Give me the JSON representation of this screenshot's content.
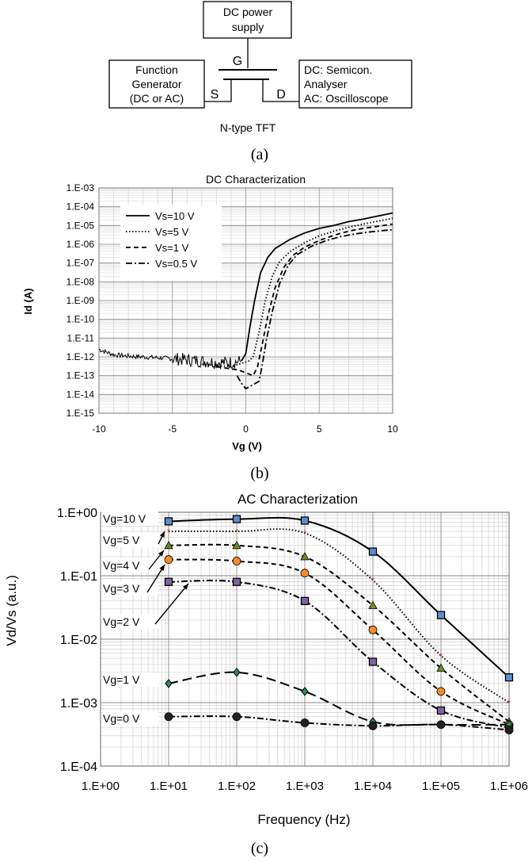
{
  "panel_a": {
    "caption": "(a)",
    "power_supply": [
      "DC power",
      "supply"
    ],
    "function_generator": [
      "Function",
      "Generator",
      "(DC or AC)"
    ],
    "analyser": [
      "DC: Semicon.",
      "Analyser",
      "AC: Oscilloscope"
    ],
    "gate_label": "G",
    "source_label": "S",
    "drain_label": "D",
    "device_label": "N-type TFT"
  },
  "chart_data": [
    {
      "id": "b",
      "type": "line",
      "caption": "(b)",
      "title": "DC Characterization",
      "xlabel": "Vg (V)",
      "ylabel": "Id (A)",
      "xscale": "linear",
      "yscale": "log",
      "xlim": [
        -10,
        10
      ],
      "ylim": [
        1e-15,
        0.001
      ],
      "xticks": [
        -10,
        -5,
        0,
        5,
        10
      ],
      "xtick_labels": [
        "-10",
        "-5",
        "0",
        "5",
        "10"
      ],
      "ytick_labels": [
        "1.E-03",
        "1.E-04",
        "1.E-05",
        "1.E-06",
        "1.E-07",
        "1.E-08",
        "1.E-09",
        "1.E-10",
        "1.E-11",
        "1.E-12",
        "1.E-13",
        "1.E-14",
        "1.E-15"
      ],
      "grid": true,
      "legend_position": "top-left",
      "series": [
        {
          "name": "Vs=10 V",
          "style": "solid",
          "points": [
            [
              -10,
              2.5e-12
            ],
            [
              -9,
              1.3e-12
            ],
            [
              -8,
              1.1e-12
            ],
            [
              -7,
              1e-12
            ],
            [
              -6,
              9e-13
            ],
            [
              -5,
              8e-13
            ],
            [
              -4,
              7e-13
            ],
            [
              -3,
              6e-13
            ],
            [
              -2,
              5e-13
            ],
            [
              -1,
              5e-13
            ],
            [
              -0.3,
              6e-13
            ],
            [
              0,
              1.5e-12
            ],
            [
              0.3,
              5e-11
            ],
            [
              0.6,
              1e-09
            ],
            [
              1,
              3e-08
            ],
            [
              1.5,
              2e-07
            ],
            [
              2,
              6e-07
            ],
            [
              3,
              1.8e-06
            ],
            [
              4,
              4e-06
            ],
            [
              5,
              7e-06
            ],
            [
              6,
              1e-05
            ],
            [
              7,
              1.6e-05
            ],
            [
              8,
              2.2e-05
            ],
            [
              9,
              3.2e-05
            ],
            [
              10,
              4.6e-05
            ]
          ]
        },
        {
          "name": "Vs=5 V",
          "style": "dotted",
          "points": [
            [
              -3,
              4e-13
            ],
            [
              -1,
              3e-13
            ],
            [
              0.2,
              6e-13
            ],
            [
              0.5,
              1e-12
            ],
            [
              0.9,
              2e-11
            ],
            [
              1.3,
              8e-10
            ],
            [
              1.8,
              2e-08
            ],
            [
              2.3,
              1.2e-07
            ],
            [
              3,
              4e-07
            ],
            [
              4,
              1.2e-06
            ],
            [
              5,
              2.8e-06
            ],
            [
              6,
              5e-06
            ],
            [
              7,
              8e-06
            ],
            [
              8,
              1.2e-05
            ],
            [
              9,
              1.7e-05
            ],
            [
              10,
              2.4e-05
            ]
          ]
        },
        {
          "name": "Vs=1 V",
          "style": "dashed",
          "points": [
            [
              -2,
              3e-13
            ],
            [
              -0.5,
              2e-13
            ],
            [
              0.5,
              1e-13
            ],
            [
              0.8,
              3e-13
            ],
            [
              1.1,
              4e-12
            ],
            [
              1.5,
              1.5e-10
            ],
            [
              2,
              5e-09
            ],
            [
              2.6,
              6e-08
            ],
            [
              3.2,
              2.5e-07
            ],
            [
              4,
              7e-07
            ],
            [
              5,
              1.6e-06
            ],
            [
              6,
              3e-06
            ],
            [
              7,
              5e-06
            ],
            [
              8,
              7e-06
            ],
            [
              9,
              9e-06
            ],
            [
              10,
              1.2e-05
            ]
          ]
        },
        {
          "name": "Vs=0.5 V",
          "style": "dashdot",
          "points": [
            [
              -0.6,
              1e-13
            ],
            [
              -0.3,
              4e-14
            ],
            [
              0,
              2e-14
            ],
            [
              0.9,
              5e-14
            ],
            [
              1.1,
              3e-13
            ],
            [
              1.4,
              8e-12
            ],
            [
              1.8,
              2.5e-10
            ],
            [
              2.3,
              8e-09
            ],
            [
              2.9,
              8e-08
            ],
            [
              3.5,
              2.8e-07
            ],
            [
              4.5,
              8e-07
            ],
            [
              5.5,
              1.6e-06
            ],
            [
              6.5,
              2.6e-06
            ],
            [
              7.5,
              3.6e-06
            ],
            [
              8.5,
              4.6e-06
            ],
            [
              10,
              6e-06
            ]
          ]
        }
      ]
    },
    {
      "id": "c",
      "type": "line",
      "caption": "(c)",
      "title": "AC Characterization",
      "xlabel": "Frequency (Hz)",
      "ylabel": "Vd/Vs (a.u.)",
      "xscale": "log",
      "yscale": "log",
      "xlim": [
        1,
        1000000
      ],
      "ylim": [
        0.0001,
        1
      ],
      "xtick_labels": [
        "1.E+00",
        "1.E+01",
        "1.E+02",
        "1.E+03",
        "1.E+04",
        "1.E+05",
        "1.E+06"
      ],
      "ytick_labels": [
        "1.E+00",
        "1.E-01",
        "1.E-02",
        "1.E-03",
        "1.E-04"
      ],
      "grid": true,
      "x": [
        10,
        100,
        1000,
        10000,
        100000,
        1000000
      ],
      "series": [
        {
          "name": "Vg=10 V",
          "style": "solid",
          "marker": "square",
          "color": "#5b8fd0",
          "values": [
            0.72,
            0.78,
            0.74,
            0.24,
            0.024,
            0.0025
          ]
        },
        {
          "name": "Vg=5 V",
          "style": "dotted",
          "marker": "star",
          "color": "#c0392b",
          "values": [
            0.5,
            0.5,
            0.47,
            0.085,
            0.0055,
            0.001
          ]
        },
        {
          "name": "Vg=4 V",
          "style": "dashed",
          "marker": "triangle",
          "color": "#6b8e23",
          "values": [
            0.3,
            0.3,
            0.2,
            0.034,
            0.0035,
            0.0005
          ]
        },
        {
          "name": "Vg=3 V",
          "style": "dashed",
          "marker": "circle",
          "color": "#f28c28",
          "values": [
            0.18,
            0.17,
            0.11,
            0.014,
            0.0015,
            0.00045
          ]
        },
        {
          "name": "Vg=2 V",
          "style": "dashdot",
          "marker": "square",
          "color": "#8064a2",
          "values": [
            0.08,
            0.08,
            0.04,
            0.0044,
            0.00075,
            0.0004
          ]
        },
        {
          "name": "Vg=1 V",
          "style": "longdash",
          "marker": "diamond",
          "color": "#2e8b57",
          "values": [
            0.002,
            0.003,
            0.0015,
            0.0005,
            0.00045,
            0.00045
          ]
        },
        {
          "name": "Vg=0 V",
          "style": "dashdot",
          "marker": "circle",
          "color": "#222222",
          "values": [
            0.0006,
            0.0006,
            0.00048,
            0.00043,
            0.00045,
            0.00037
          ]
        }
      ]
    }
  ]
}
